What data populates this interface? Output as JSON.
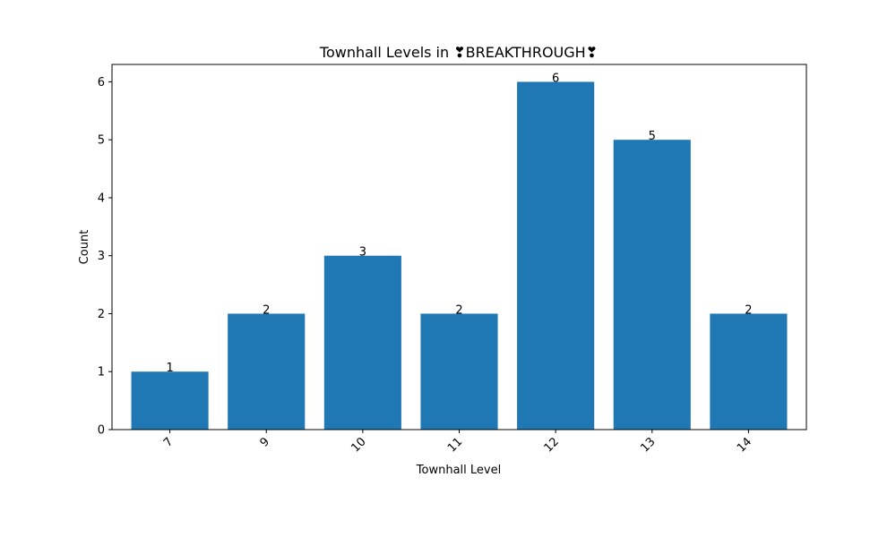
{
  "chart_data": {
    "type": "bar",
    "title": "Townhall Levels in ❣BREAKTHROUGH❣",
    "xlabel": "Townhall Level",
    "ylabel": "Count",
    "categories": [
      "7",
      "9",
      "10",
      "11",
      "12",
      "13",
      "14"
    ],
    "values": [
      1,
      2,
      3,
      2,
      6,
      5,
      2
    ],
    "ylim": [
      0,
      6.3
    ],
    "yticks": [
      0,
      1,
      2,
      3,
      4,
      5,
      6
    ],
    "bar_color": "#1f77b4",
    "grid": false,
    "x_tick_rotation": 45
  }
}
